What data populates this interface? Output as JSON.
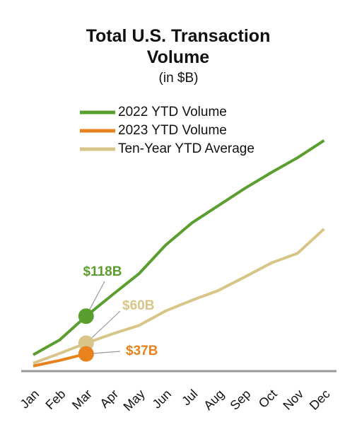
{
  "chart_data": {
    "type": "line",
    "title": "Total U.S. Transaction Volume",
    "subtitle": "(in $B)",
    "categories": [
      "Jan",
      "Feb",
      "Mar",
      "Apr",
      "May",
      "Jun",
      "Jul",
      "Aug",
      "Sep",
      "Oct",
      "Nov",
      "Dec"
    ],
    "series": [
      {
        "name": "2022 YTD Volume",
        "color": "#5a9e2f",
        "values": [
          35,
          67,
          118,
          164,
          209,
          270,
          318,
          355,
          392,
          426,
          458,
          495
        ],
        "value_labels": [
          null,
          null,
          "$118B",
          null,
          null,
          null,
          null,
          null,
          null,
          null,
          null,
          null
        ]
      },
      {
        "name": "2023 YTD Volume",
        "color": "#e8821e",
        "values": [
          11,
          23,
          37,
          null,
          null,
          null,
          null,
          null,
          null,
          null,
          null,
          null
        ],
        "value_labels": [
          null,
          null,
          "$37B",
          null,
          null,
          null,
          null,
          null,
          null,
          null,
          null,
          null
        ]
      },
      {
        "name": "Ten-Year YTD Average",
        "color": "#d8c587",
        "values": [
          17,
          38,
          60,
          80,
          98,
          129,
          152,
          173,
          202,
          232,
          253,
          305
        ],
        "value_labels": [
          null,
          null,
          "$60B",
          null,
          null,
          null,
          null,
          null,
          null,
          null,
          null,
          null
        ]
      }
    ],
    "ylim": [
      0,
      540
    ],
    "legend": "top"
  }
}
